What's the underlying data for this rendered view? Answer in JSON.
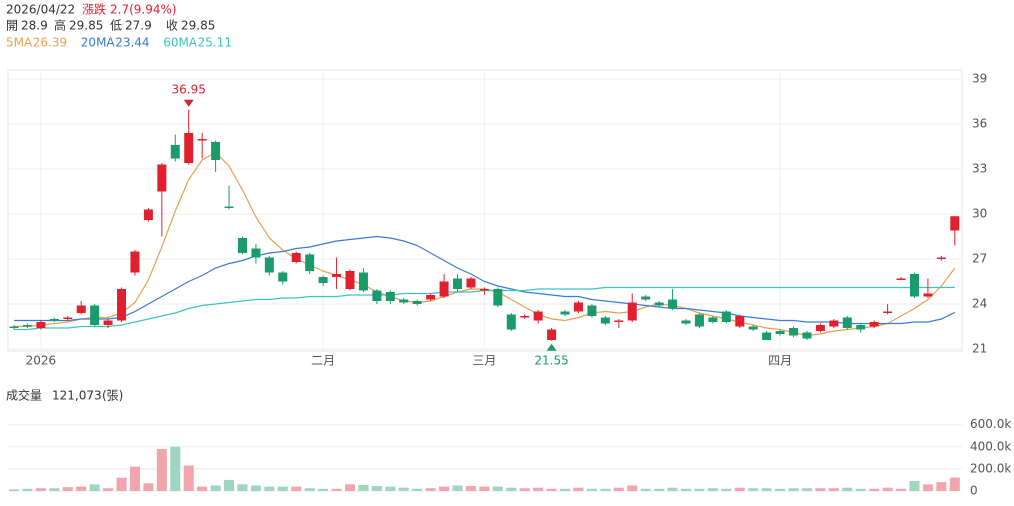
{
  "header": {
    "date": "2026/04/22",
    "change_label": "漲跌",
    "change": "2.7(9.94%)",
    "ohlc_labels": [
      "開",
      "高",
      "低",
      "收"
    ],
    "volume_title": "成交量",
    "volume_text": "121,073",
    "volume_unit": "(張)"
  },
  "chart_data": [
    {
      "type": "candlestick",
      "up_color": "#e0202e",
      "down_color": "#1a9b6c",
      "categories": [
        null,
        null,
        "2026",
        null,
        null,
        null,
        null,
        null,
        null,
        null,
        null,
        null,
        null,
        null,
        null,
        null,
        null,
        null,
        null,
        null,
        null,
        null,
        null,
        "二月",
        null,
        null,
        null,
        null,
        null,
        null,
        null,
        null,
        null,
        null,
        null,
        "三月",
        null,
        null,
        null,
        null,
        null,
        null,
        null,
        null,
        null,
        null,
        null,
        null,
        null,
        null,
        null,
        null,
        null,
        null,
        null,
        null,
        null,
        "四月",
        null,
        null,
        null,
        null,
        null,
        null,
        null,
        null,
        null,
        null,
        null,
        null,
        null
      ],
      "open": [
        22.5,
        22.6,
        22.4,
        23.0,
        23.0,
        23.4,
        23.9,
        22.6,
        22.9,
        26.1,
        29.6,
        31.5,
        34.6,
        33.4,
        34.9,
        34.8,
        30.5,
        28.4,
        27.7,
        27.1,
        26.1,
        26.8,
        27.3,
        25.8,
        25.8,
        25.0,
        26.1,
        24.9,
        24.8,
        24.3,
        24.2,
        24.3,
        24.5,
        25.7,
        25.1,
        24.9,
        25.0,
        23.3,
        23.1,
        22.9,
        21.6,
        23.5,
        23.5,
        23.9,
        23.1,
        22.8,
        22.9,
        24.5,
        24.1,
        24.3,
        22.9,
        23.3,
        23.1,
        23.5,
        22.5,
        22.5,
        22.1,
        22.2,
        22.4,
        22.1,
        22.2,
        22.5,
        23.1,
        22.6,
        22.5,
        23.4,
        25.6,
        26.0,
        24.5,
        27.0,
        28.9
      ],
      "high": [
        22.6,
        22.7,
        22.9,
        23.1,
        23.2,
        24.2,
        24.0,
        23.0,
        25.1,
        27.6,
        30.4,
        33.4,
        35.3,
        36.95,
        35.4,
        34.9,
        31.9,
        28.5,
        28.0,
        27.2,
        26.2,
        27.5,
        27.4,
        25.9,
        27.1,
        26.3,
        26.4,
        25.0,
        24.9,
        24.4,
        24.3,
        24.7,
        26.0,
        26.0,
        25.8,
        25.1,
        25.1,
        23.4,
        23.3,
        23.6,
        22.4,
        23.6,
        24.2,
        24.0,
        23.2,
        23.0,
        24.7,
        24.6,
        24.2,
        25.0,
        23.0,
        23.4,
        23.2,
        23.6,
        23.3,
        22.6,
        22.2,
        22.3,
        22.5,
        22.2,
        22.7,
        23.0,
        23.2,
        22.7,
        22.9,
        24.0,
        25.8,
        26.1,
        25.7,
        27.2,
        29.85
      ],
      "low": [
        22.3,
        22.4,
        22.3,
        22.8,
        22.9,
        23.3,
        22.5,
        22.4,
        22.8,
        25.9,
        29.5,
        28.5,
        33.5,
        33.3,
        33.7,
        32.8,
        30.3,
        27.3,
        26.7,
        25.9,
        25.3,
        26.7,
        26.0,
        25.2,
        25.0,
        24.9,
        24.8,
        24.0,
        24.0,
        24.0,
        23.9,
        24.2,
        24.4,
        24.8,
        25.0,
        24.6,
        23.8,
        22.2,
        23.0,
        22.7,
        21.55,
        23.2,
        23.4,
        23.1,
        22.6,
        22.4,
        22.8,
        24.2,
        23.8,
        23.6,
        22.6,
        22.4,
        22.7,
        22.7,
        22.4,
        22.2,
        21.6,
        21.9,
        21.8,
        21.6,
        22.1,
        22.4,
        22.3,
        22.1,
        22.4,
        23.3,
        25.6,
        24.4,
        24.4,
        26.9,
        27.9
      ],
      "close": [
        22.4,
        22.5,
        22.8,
        22.9,
        23.1,
        23.9,
        22.6,
        22.9,
        25.0,
        27.5,
        30.3,
        33.3,
        33.7,
        35.4,
        35.0,
        33.6,
        30.4,
        27.4,
        27.1,
        26.1,
        25.5,
        27.4,
        26.2,
        25.4,
        26.0,
        26.2,
        24.9,
        24.2,
        24.2,
        24.1,
        24.0,
        24.6,
        25.5,
        25.0,
        25.7,
        25.0,
        23.9,
        22.3,
        23.2,
        23.5,
        22.3,
        23.3,
        24.1,
        23.2,
        22.7,
        22.9,
        24.1,
        24.3,
        23.9,
        23.7,
        22.7,
        22.5,
        22.8,
        22.8,
        23.2,
        22.3,
        21.6,
        22.0,
        21.9,
        21.7,
        22.6,
        22.9,
        22.4,
        22.3,
        22.8,
        23.5,
        25.7,
        24.5,
        24.7,
        27.1,
        29.85
      ],
      "series": [
        {
          "name": "5MA",
          "color": "#e8a050",
          "values": [
            22.5,
            22.5,
            22.6,
            22.7,
            22.8,
            23.0,
            23.1,
            23.1,
            23.4,
            24.1,
            25.6,
            27.8,
            30.2,
            32.3,
            33.6,
            34.1,
            33.2,
            31.6,
            29.8,
            28.4,
            27.6,
            27.0,
            26.6,
            26.2,
            25.9,
            25.6,
            25.3,
            24.8,
            24.5,
            24.2,
            24.1,
            24.2,
            24.5,
            24.8,
            25.0,
            25.0,
            24.8,
            24.3,
            23.8,
            23.3,
            23.0,
            22.9,
            23.1,
            23.4,
            23.5,
            23.4,
            23.5,
            23.8,
            24.0,
            23.9,
            23.7,
            23.4,
            23.2,
            23.0,
            22.8,
            22.6,
            22.4,
            22.3,
            22.1,
            21.9,
            22.0,
            22.2,
            22.3,
            22.4,
            22.5,
            22.7,
            23.2,
            23.7,
            24.3,
            25.2,
            26.39
          ]
        },
        {
          "name": "20MA",
          "color": "#3a7bd5",
          "values": [
            22.9,
            22.9,
            22.9,
            22.9,
            22.9,
            23.0,
            23.0,
            23.0,
            23.1,
            23.5,
            24.0,
            24.5,
            25.0,
            25.5,
            25.9,
            26.4,
            26.7,
            26.9,
            27.2,
            27.4,
            27.5,
            27.7,
            27.8,
            28.0,
            28.2,
            28.3,
            28.4,
            28.5,
            28.4,
            28.2,
            27.9,
            27.4,
            26.9,
            26.4,
            26.0,
            25.5,
            25.2,
            25.0,
            24.8,
            24.7,
            24.6,
            24.5,
            24.5,
            24.3,
            24.2,
            24.1,
            24.0,
            23.9,
            23.8,
            23.7,
            23.7,
            23.6,
            23.5,
            23.4,
            23.2,
            23.1,
            23.0,
            22.9,
            22.9,
            22.8,
            22.8,
            22.8,
            22.7,
            22.7,
            22.7,
            22.7,
            22.7,
            22.8,
            22.8,
            23.0,
            23.44
          ]
        },
        {
          "name": "60MA",
          "color": "#3cc4c4",
          "values": [
            22.3,
            22.3,
            22.4,
            22.4,
            22.4,
            22.5,
            22.5,
            22.5,
            22.6,
            22.8,
            23.0,
            23.2,
            23.4,
            23.7,
            23.9,
            24.0,
            24.1,
            24.2,
            24.3,
            24.3,
            24.4,
            24.4,
            24.5,
            24.5,
            24.5,
            24.6,
            24.6,
            24.6,
            24.6,
            24.7,
            24.7,
            24.7,
            24.8,
            24.8,
            24.8,
            24.9,
            24.9,
            24.9,
            24.9,
            25.0,
            25.0,
            25.0,
            25.0,
            25.0,
            25.1,
            25.1,
            25.1,
            25.1,
            25.1,
            25.1,
            25.1,
            25.1,
            25.1,
            25.1,
            25.1,
            25.1,
            25.1,
            25.1,
            25.1,
            25.1,
            25.1,
            25.1,
            25.1,
            25.1,
            25.1,
            25.1,
            25.1,
            25.1,
            25.1,
            25.1,
            25.11
          ]
        }
      ],
      "ylim": [
        21,
        39
      ],
      "yticks": [
        21,
        24,
        27,
        30,
        33,
        36,
        39
      ],
      "grid": true
    },
    {
      "type": "bar",
      "up_color": "#f2a5ac",
      "down_color": "#9fd6c0",
      "values": [
        15,
        20,
        25,
        25,
        35,
        40,
        60,
        25,
        120,
        220,
        70,
        380,
        400,
        230,
        40,
        50,
        100,
        60,
        50,
        40,
        40,
        40,
        25,
        20,
        20,
        60,
        55,
        45,
        40,
        30,
        20,
        25,
        40,
        50,
        45,
        40,
        40,
        30,
        25,
        30,
        20,
        20,
        30,
        20,
        20,
        30,
        50,
        20,
        20,
        30,
        20,
        20,
        25,
        20,
        30,
        25,
        25,
        20,
        25,
        25,
        25,
        25,
        30,
        20,
        20,
        30,
        20,
        90,
        60,
        80,
        121.073
      ],
      "ylim": [
        0,
        660
      ],
      "yticks": [
        0,
        {
          "value": 200,
          "label": "200.0k"
        },
        {
          "value": 400,
          "label": "400.0k"
        },
        {
          "value": 600,
          "label": "600.0k"
        }
      ],
      "grid": true
    }
  ]
}
